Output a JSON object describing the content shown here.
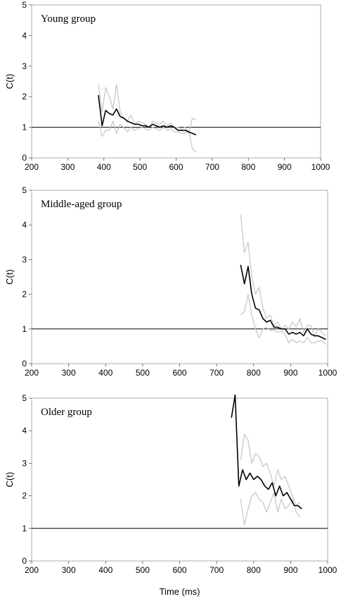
{
  "chart_data": [
    {
      "type": "line",
      "title": "Young group",
      "ylabel": "C(t)",
      "xlim": [
        200,
        1000
      ],
      "ylim": [
        0,
        5
      ],
      "xticks": [
        "200",
        "300",
        "400",
        "500",
        "600",
        "700",
        "800",
        "900",
        "1000"
      ],
      "yticks": [
        "0",
        "1",
        "2",
        "3",
        "4",
        "5"
      ],
      "reference_line": 1,
      "series": [
        {
          "role": "upper",
          "color": "#c8c8c8",
          "x": [
            385,
            395,
            405,
            415,
            425,
            435,
            445,
            455,
            465,
            475,
            485,
            495,
            505,
            515,
            525,
            535,
            545,
            555,
            565,
            575,
            585,
            595,
            605,
            615,
            625,
            635,
            645,
            655
          ],
          "y": [
            2.4,
            1.5,
            2.3,
            2.0,
            1.6,
            2.4,
            1.5,
            1.3,
            1.2,
            1.4,
            1.1,
            1.2,
            1.15,
            1.1,
            1.0,
            1.2,
            1.15,
            1.1,
            1.2,
            1.05,
            1.15,
            1.0,
            1.0,
            0.95,
            1.0,
            0.8,
            1.3,
            1.25
          ]
        },
        {
          "role": "lower",
          "color": "#c8c8c8",
          "x": [
            385,
            395,
            405,
            415,
            425,
            435,
            445,
            455,
            465,
            475,
            485,
            495,
            505,
            515,
            525,
            535,
            545,
            555,
            565,
            575,
            585,
            595,
            605,
            615,
            625,
            635,
            645,
            655
          ],
          "y": [
            1.2,
            0.7,
            0.9,
            0.9,
            1.2,
            0.8,
            1.1,
            1.0,
            0.85,
            1.0,
            0.9,
            0.95,
            1.0,
            0.95,
            0.9,
            1.0,
            0.95,
            0.9,
            1.0,
            0.9,
            0.95,
            0.85,
            0.85,
            0.8,
            0.8,
            0.9,
            0.3,
            0.2
          ]
        },
        {
          "role": "mean",
          "color": "#000000",
          "x": [
            385,
            395,
            405,
            415,
            425,
            435,
            445,
            455,
            465,
            475,
            485,
            495,
            505,
            515,
            525,
            535,
            545,
            555,
            565,
            575,
            585,
            595,
            605,
            615,
            625,
            635,
            645,
            655
          ],
          "y": [
            2.05,
            1.05,
            1.55,
            1.45,
            1.4,
            1.6,
            1.35,
            1.3,
            1.2,
            1.15,
            1.1,
            1.1,
            1.05,
            1.05,
            1.0,
            1.1,
            1.05,
            1.0,
            1.05,
            1.0,
            1.05,
            1.0,
            0.9,
            0.9,
            0.9,
            0.85,
            0.8,
            0.75
          ]
        }
      ]
    },
    {
      "type": "line",
      "title": "Middle-aged group",
      "ylabel": "C(t)",
      "xlim": [
        200,
        1000
      ],
      "ylim": [
        0,
        5
      ],
      "xticks": [
        "200",
        "300",
        "400",
        "500",
        "600",
        "700",
        "800",
        "900",
        "1000"
      ],
      "yticks": [
        "0",
        "1",
        "2",
        "3",
        "4",
        "5"
      ],
      "reference_line": 1,
      "series": [
        {
          "role": "upper",
          "color": "#c8c8c8",
          "x": [
            765,
            775,
            785,
            795,
            805,
            815,
            825,
            835,
            845,
            855,
            865,
            875,
            885,
            895,
            905,
            915,
            925,
            935,
            945,
            955,
            965,
            975,
            985,
            995
          ],
          "y": [
            4.3,
            3.2,
            3.5,
            2.5,
            2.0,
            2.2,
            1.6,
            1.3,
            1.4,
            1.1,
            1.2,
            1.0,
            1.1,
            1.0,
            1.2,
            1.05,
            1.3,
            0.9,
            1.1,
            1.1,
            0.8,
            1.0,
            0.9,
            0.8
          ]
        },
        {
          "role": "lower",
          "color": "#c8c8c8",
          "x": [
            765,
            775,
            785,
            795,
            805,
            815,
            825,
            835,
            845,
            855,
            865,
            875,
            885,
            895,
            905,
            915,
            925,
            935,
            945,
            955,
            965,
            975,
            985,
            995
          ],
          "y": [
            1.4,
            1.5,
            2.0,
            1.4,
            1.0,
            0.75,
            1.0,
            1.05,
            0.95,
            0.95,
            0.9,
            0.95,
            0.85,
            0.6,
            0.7,
            0.6,
            0.65,
            0.6,
            0.75,
            0.6,
            0.6,
            0.65,
            0.65,
            0.55
          ]
        },
        {
          "role": "mean",
          "color": "#000000",
          "x": [
            765,
            775,
            785,
            795,
            805,
            815,
            825,
            835,
            845,
            855,
            865,
            875,
            885,
            895,
            905,
            915,
            925,
            935,
            945,
            955,
            965,
            975,
            985,
            995
          ],
          "y": [
            2.85,
            2.3,
            2.8,
            2.0,
            1.6,
            1.55,
            1.3,
            1.2,
            1.25,
            1.05,
            1.05,
            1.0,
            1.0,
            0.85,
            0.9,
            0.85,
            0.9,
            0.8,
            1.0,
            0.85,
            0.8,
            0.8,
            0.75,
            0.7
          ]
        }
      ]
    },
    {
      "type": "line",
      "title": "Older group",
      "ylabel": "C(t)",
      "xlabel": "Time (ms)",
      "xlim": [
        200,
        1000
      ],
      "ylim": [
        0,
        5
      ],
      "xticks": [
        "200",
        "300",
        "400",
        "500",
        "600",
        "700",
        "800",
        "900",
        "1000"
      ],
      "yticks": [
        "0",
        "1",
        "2",
        "3",
        "4",
        "5"
      ],
      "reference_line": 1,
      "series": [
        {
          "role": "upper",
          "color": "#c8c8c8",
          "x": [
            765,
            775,
            785,
            795,
            805,
            815,
            825,
            835,
            845,
            855,
            865,
            875,
            885,
            895,
            905,
            915,
            925
          ],
          "y": [
            3.1,
            3.9,
            3.7,
            3.0,
            3.3,
            3.2,
            2.9,
            3.0,
            2.7,
            2.3,
            2.8,
            2.5,
            2.6,
            2.3,
            2.0,
            1.7,
            1.8
          ]
        },
        {
          "role": "lower",
          "color": "#c8c8c8",
          "x": [
            765,
            775,
            785,
            795,
            805,
            815,
            825,
            835,
            845,
            855,
            865,
            875,
            885,
            895,
            905,
            915,
            925
          ],
          "y": [
            1.9,
            1.1,
            1.6,
            2.0,
            2.1,
            1.9,
            1.8,
            1.5,
            1.8,
            2.1,
            1.5,
            1.9,
            1.6,
            1.7,
            1.9,
            1.5,
            1.35
          ]
        },
        {
          "role": "mean",
          "color": "#000000",
          "x": [
            740,
            750,
            760,
            770,
            780,
            790,
            800,
            810,
            820,
            830,
            840,
            850,
            860,
            870,
            880,
            890,
            900,
            910,
            920,
            930
          ],
          "y": [
            4.4,
            5.1,
            2.3,
            2.8,
            2.5,
            2.7,
            2.5,
            2.6,
            2.5,
            2.3,
            2.2,
            2.4,
            2.0,
            2.3,
            2.0,
            2.1,
            1.9,
            1.7,
            1.7,
            1.6
          ]
        }
      ]
    }
  ]
}
